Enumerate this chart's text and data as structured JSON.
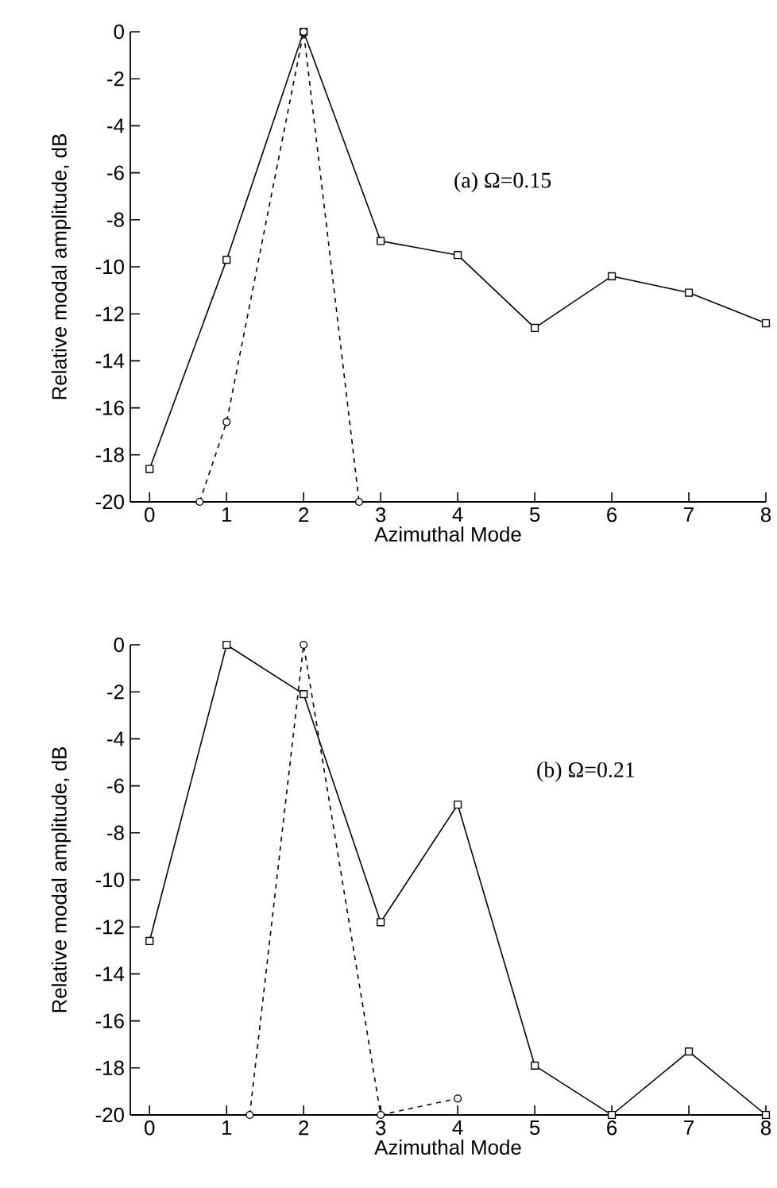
{
  "chart_data": [
    {
      "type": "line",
      "xlabel": "Azimuthal Mode",
      "ylabel": "Relative modal amplitude, dB",
      "annotations": [
        "(a) Ω=0.15"
      ],
      "xlim": [
        -0.25,
        8
      ],
      "ylim": [
        -20,
        0
      ],
      "xticks": [
        0,
        1,
        2,
        3,
        4,
        5,
        6,
        7,
        8
      ],
      "yticks": [
        -20,
        -18,
        -16,
        -14,
        -12,
        -10,
        -8,
        -6,
        -4,
        -2,
        0
      ],
      "series": [
        {
          "color": "#000000",
          "marker": "square",
          "line_style": "solid",
          "x": [
            0,
            1,
            2,
            3,
            4,
            5,
            6,
            7,
            8
          ],
          "values": [
            -18.6,
            -9.7,
            0,
            -8.9,
            -9.5,
            -12.6,
            -10.4,
            -11.1,
            -12.4
          ]
        },
        {
          "color": "#000000",
          "marker": "circle",
          "line_style": "dashed",
          "x": [
            0.65,
            1,
            2,
            2.72
          ],
          "values": [
            -20,
            -16.6,
            0,
            -20
          ]
        }
      ]
    },
    {
      "type": "line",
      "xlabel": "Azimuthal Mode",
      "ylabel": "Relative modal amplitude, dB",
      "annotations": [
        "(b) Ω=0.21"
      ],
      "xlim": [
        -0.25,
        8
      ],
      "ylim": [
        -20,
        0
      ],
      "xticks": [
        0,
        1,
        2,
        3,
        4,
        5,
        6,
        7,
        8
      ],
      "yticks": [
        -20,
        -18,
        -16,
        -14,
        -12,
        -10,
        -8,
        -6,
        -4,
        -2,
        0
      ],
      "series": [
        {
          "color": "#000000",
          "marker": "square",
          "line_style": "solid",
          "x": [
            0,
            1,
            2,
            3,
            4,
            5,
            6,
            7,
            8
          ],
          "values": [
            -12.6,
            0,
            -2.1,
            -11.8,
            -6.8,
            -17.9,
            -20,
            -17.3,
            -20
          ]
        },
        {
          "color": "#000000",
          "marker": "circle",
          "line_style": "dashed",
          "x": [
            1.3,
            2,
            3,
            4
          ],
          "values": [
            -20,
            0,
            -20,
            -19.3
          ]
        }
      ]
    }
  ]
}
